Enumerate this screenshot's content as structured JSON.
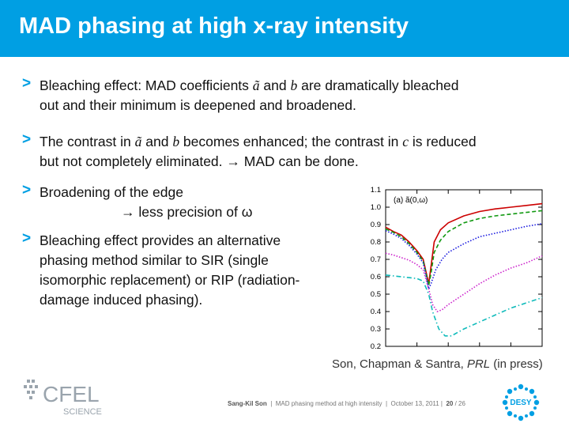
{
  "header": {
    "title": "MAD phasing at high x-ray intensity"
  },
  "bullets": [
    {
      "marker": ">",
      "line1_a": "Bleaching effect: MAD coefficients ",
      "sym1": "ã",
      "line1_b": " and ",
      "sym2": "b",
      "line1_c": " are dramatically bleached",
      "line2": "out and their minimum is deepened and broadened."
    },
    {
      "marker": ">",
      "line1_a": "The contrast in ",
      "sym1": "ã",
      "line1_b": " and ",
      "sym2": "b",
      "line1_c": " becomes enhanced; the contrast in ",
      "sym3": "c",
      "line1_d": " is reduced",
      "line2": "but not completely eliminated. → MAD can be done."
    },
    {
      "marker": ">",
      "line1": "Broadening of the edge",
      "line2": "→ less precision of ω"
    },
    {
      "marker": ">",
      "line1": "Bleaching effect provides an alternative",
      "line2": "phasing method similar to SIR (single",
      "line3": "isomorphic replacement) or RIP (radiation-",
      "line4": "damage induced phasing)."
    }
  ],
  "chart_data": {
    "type": "line",
    "annotation": "(a) ã(0,ω)",
    "ylim": [
      0.2,
      1.1
    ],
    "y_ticks": [
      "1.1",
      "1.0",
      "0.9",
      "0.8",
      "0.7",
      "0.6",
      "0.5",
      "0.4",
      "0.3",
      "0.2"
    ],
    "xlim": [
      0,
      10
    ],
    "grid": false,
    "series": [
      {
        "color": "#cc0000",
        "style": "solid",
        "x": [
          0,
          0.5,
          1,
          1.5,
          2,
          2.4,
          2.75,
          2.9,
          3.1,
          3.5,
          4,
          5,
          6,
          7,
          8,
          9,
          10
        ],
        "y": [
          0.885,
          0.86,
          0.84,
          0.8,
          0.75,
          0.7,
          0.56,
          0.66,
          0.8,
          0.87,
          0.91,
          0.95,
          0.975,
          0.99,
          1.0,
          1.01,
          1.02
        ]
      },
      {
        "color": "#119911",
        "style": "dashed",
        "x": [
          0,
          0.5,
          1,
          1.5,
          2,
          2.4,
          2.75,
          2.9,
          3.1,
          3.5,
          4,
          5,
          6,
          7,
          8,
          9,
          10
        ],
        "y": [
          0.875,
          0.855,
          0.83,
          0.79,
          0.74,
          0.69,
          0.55,
          0.62,
          0.74,
          0.81,
          0.86,
          0.91,
          0.935,
          0.95,
          0.96,
          0.97,
          0.98
        ]
      },
      {
        "color": "#1a1adf",
        "style": "dotted",
        "x": [
          0,
          0.5,
          1,
          1.5,
          2,
          2.4,
          2.75,
          2.9,
          3.2,
          3.6,
          4,
          5,
          6,
          7,
          8,
          9,
          10
        ],
        "y": [
          0.865,
          0.845,
          0.82,
          0.78,
          0.73,
          0.68,
          0.53,
          0.56,
          0.64,
          0.7,
          0.74,
          0.79,
          0.83,
          0.85,
          0.87,
          0.89,
          0.905
        ]
      },
      {
        "color": "#cc22cc",
        "style": "dotted",
        "x": [
          0,
          0.5,
          1,
          1.5,
          2,
          2.4,
          2.75,
          3.0,
          3.3,
          3.6,
          4,
          5,
          6,
          7,
          8,
          9,
          10
        ],
        "y": [
          0.735,
          0.725,
          0.71,
          0.695,
          0.67,
          0.64,
          0.53,
          0.44,
          0.4,
          0.41,
          0.44,
          0.5,
          0.56,
          0.61,
          0.65,
          0.68,
          0.72
        ]
      },
      {
        "color": "#11bbbb",
        "style": "dashdot",
        "x": [
          0,
          0.5,
          1,
          1.5,
          2,
          2.4,
          2.75,
          3.0,
          3.4,
          3.8,
          4.2,
          5,
          6,
          7,
          8,
          9,
          10
        ],
        "y": [
          0.61,
          0.605,
          0.6,
          0.595,
          0.59,
          0.575,
          0.5,
          0.4,
          0.3,
          0.26,
          0.26,
          0.3,
          0.34,
          0.38,
          0.42,
          0.45,
          0.48
        ]
      }
    ]
  },
  "credit": {
    "authors": "Son, Chapman & Santra, ",
    "journal": "PRL",
    "note": " (in press)"
  },
  "footer": {
    "author": "Sang-Kil Son",
    "talk": "MAD phasing method at high intensity",
    "date": "October 13, 2011",
    "page": "20",
    "total": "/ 26"
  },
  "logos": {
    "cfel_text": "CFEL",
    "cfel_sub": "SCIENCE",
    "desy_text": "DESY",
    "brand_color": "#009fe3"
  }
}
